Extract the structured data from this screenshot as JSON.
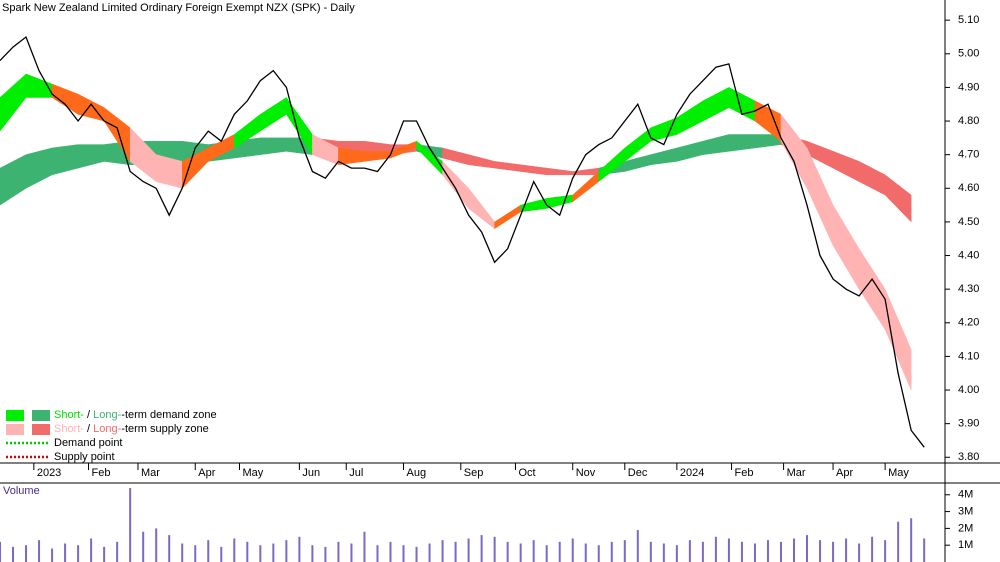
{
  "chart_data": {
    "type": "line",
    "title": "Spark New Zealand Limited Ordinary Foreign Exempt NZX (SPK) - Daily",
    "x": [
      0,
      5,
      10,
      15,
      20,
      25,
      30,
      35,
      40,
      45,
      50,
      55,
      60,
      65,
      70,
      75,
      80,
      85,
      90,
      95,
      100,
      105,
      110,
      115,
      120,
      125,
      130,
      135,
      140,
      145,
      150,
      155,
      160,
      165,
      170,
      175,
      180,
      185,
      190,
      195,
      200,
      205,
      210,
      215,
      220,
      225,
      230,
      235,
      240,
      245,
      250,
      255,
      260,
      265,
      270,
      275,
      280,
      285,
      290,
      295,
      300,
      305,
      310,
      315,
      320,
      325,
      330,
      335,
      340,
      345,
      350,
      355
    ],
    "values": [
      4.98,
      5.02,
      5.05,
      4.95,
      4.88,
      4.85,
      4.8,
      4.85,
      4.8,
      4.78,
      4.65,
      4.62,
      4.6,
      4.52,
      4.6,
      4.72,
      4.77,
      4.74,
      4.82,
      4.86,
      4.92,
      4.95,
      4.9,
      4.75,
      4.65,
      4.63,
      4.68,
      4.66,
      4.66,
      4.65,
      4.7,
      4.8,
      4.8,
      4.72,
      4.66,
      4.6,
      4.52,
      4.47,
      4.38,
      4.42,
      4.52,
      4.62,
      4.55,
      4.52,
      4.63,
      4.7,
      4.73,
      4.75,
      4.8,
      4.85,
      4.75,
      4.73,
      4.82,
      4.88,
      4.92,
      4.96,
      4.97,
      4.82,
      4.83,
      4.85,
      4.75,
      4.68,
      4.55,
      4.4,
      4.33,
      4.3,
      4.28,
      4.33,
      4.27,
      4.05,
      3.88,
      3.83
    ],
    "color": "#000000",
    "xlim": [
      0,
      363
    ],
    "ylim": [
      3.78,
      5.16
    ],
    "xticks": [
      {
        "value": 13,
        "label": "2023"
      },
      {
        "value": 34,
        "label": "Feb"
      },
      {
        "value": 53,
        "label": "Mar"
      },
      {
        "value": 75,
        "label": "Apr"
      },
      {
        "value": 92,
        "label": "May"
      },
      {
        "value": 115,
        "label": "Jun"
      },
      {
        "value": 133,
        "label": "Jul"
      },
      {
        "value": 155,
        "label": "Aug"
      },
      {
        "value": 177,
        "label": "Sep"
      },
      {
        "value": 198,
        "label": "Oct"
      },
      {
        "value": 220,
        "label": "Nov"
      },
      {
        "value": 240,
        "label": "Dec"
      },
      {
        "value": 260,
        "label": "2024"
      },
      {
        "value": 281,
        "label": "Feb"
      },
      {
        "value": 301,
        "label": "Mar"
      },
      {
        "value": 320,
        "label": "Apr"
      },
      {
        "value": 340,
        "label": "May"
      }
    ],
    "yticks": [
      {
        "value": 5.1,
        "label": "5.10"
      },
      {
        "value": 5.0,
        "label": "5.00"
      },
      {
        "value": 4.9,
        "label": "4.90"
      },
      {
        "value": 4.8,
        "label": "4.80"
      },
      {
        "value": 4.7,
        "label": "4.70"
      },
      {
        "value": 4.6,
        "label": "4.60"
      },
      {
        "value": 4.5,
        "label": "4.50"
      },
      {
        "value": 4.4,
        "label": "4.40"
      },
      {
        "value": 4.3,
        "label": "4.30"
      },
      {
        "value": 4.2,
        "label": "4.20"
      },
      {
        "value": 4.1,
        "label": "4.10"
      },
      {
        "value": 4.0,
        "label": "4.00"
      },
      {
        "value": 3.9,
        "label": "3.90"
      },
      {
        "value": 3.8,
        "label": "3.80"
      }
    ],
    "zones": [
      {
        "x": [
          0,
          10,
          20,
          30,
          40,
          50,
          60,
          70,
          80,
          90,
          100,
          110,
          120,
          130,
          140,
          150,
          160,
          170,
          180,
          190,
          200,
          210,
          220,
          230,
          240,
          250,
          260,
          270,
          280,
          290,
          300,
          310,
          320,
          330,
          340,
          350
        ],
        "upper": [
          4.66,
          4.7,
          4.72,
          4.73,
          4.73,
          4.74,
          4.74,
          4.74,
          4.73,
          4.74,
          4.75,
          4.75,
          4.75,
          4.74,
          4.74,
          4.73,
          4.73,
          4.72,
          4.7,
          4.68,
          4.67,
          4.66,
          4.65,
          4.66,
          4.68,
          4.7,
          4.72,
          4.74,
          4.76,
          4.76,
          4.76,
          4.74,
          4.71,
          4.68,
          4.64,
          4.58
        ],
        "lower": [
          4.55,
          4.6,
          4.64,
          4.66,
          4.68,
          4.67,
          4.67,
          4.68,
          4.68,
          4.69,
          4.7,
          4.71,
          4.7,
          4.7,
          4.7,
          4.7,
          4.71,
          4.69,
          4.67,
          4.66,
          4.65,
          4.64,
          4.64,
          4.64,
          4.65,
          4.67,
          4.68,
          4.7,
          4.71,
          4.72,
          4.73,
          4.7,
          4.66,
          4.62,
          4.58,
          4.5
        ],
        "colors": [
          "#3cb371",
          "#3cb371",
          "#3cb371",
          "#3cb371",
          "#3cb371",
          "#3cb371",
          "#3cb371",
          "#3cb371",
          "#3cb371",
          "#3cb371",
          "#3cb371",
          "#3cb371",
          "#f26b6b",
          "#f26b6b",
          "#f26b6b",
          "#f26b6b",
          "#3cb371",
          "#f26b6b",
          "#f26b6b",
          "#f26b6b",
          "#f26b6b",
          "#f26b6b",
          "#f26b6b",
          "#3cb371",
          "#3cb371",
          "#3cb371",
          "#3cb371",
          "#3cb371",
          "#3cb371",
          "#3cb371",
          "#f26b6b",
          "#f26b6b",
          "#f26b6b",
          "#f26b6b",
          "#f26b6b",
          "#f26b6b"
        ]
      },
      {
        "x": [
          0,
          10,
          20,
          30,
          40,
          50,
          60,
          70,
          80,
          90,
          100,
          110,
          120,
          130,
          140,
          150,
          160,
          170,
          180,
          190,
          200,
          210,
          220,
          230,
          240,
          250,
          260,
          270,
          280,
          290,
          300,
          310,
          320,
          330,
          340,
          350
        ],
        "upper": [
          4.87,
          4.94,
          4.91,
          4.88,
          4.84,
          4.78,
          4.7,
          4.68,
          4.72,
          4.76,
          4.82,
          4.87,
          4.76,
          4.72,
          4.71,
          4.71,
          4.74,
          4.68,
          4.6,
          4.5,
          4.55,
          4.57,
          4.58,
          4.65,
          4.72,
          4.78,
          4.81,
          4.86,
          4.9,
          4.86,
          4.82,
          4.72,
          4.55,
          4.42,
          4.3,
          4.12
        ],
        "lower": [
          4.77,
          4.87,
          4.87,
          4.82,
          4.8,
          4.68,
          4.62,
          4.6,
          4.68,
          4.72,
          4.77,
          4.82,
          4.7,
          4.67,
          4.68,
          4.69,
          4.72,
          4.64,
          4.54,
          4.48,
          4.53,
          4.54,
          4.56,
          4.62,
          4.68,
          4.74,
          4.76,
          4.8,
          4.84,
          4.8,
          4.74,
          4.6,
          4.43,
          4.3,
          4.18,
          4.0
        ],
        "colors": [
          "#00ee00",
          "#00ee00",
          "#ff6a1a",
          "#ff6a1a",
          "#ff6a1a",
          "#ffb3b3",
          "#ffb3b3",
          "#ff6a1a",
          "#ff6a1a",
          "#00ee00",
          "#00ee00",
          "#00ee00",
          "#ffb3b3",
          "#ff6a1a",
          "#ff6a1a",
          "#ff6a1a",
          "#00ee00",
          "#ffb3b3",
          "#ffb3b3",
          "#ff6a1a",
          "#00ee00",
          "#00ee00",
          "#ff6a1a",
          "#00ee00",
          "#00ee00",
          "#00ee00",
          "#00ee00",
          "#00ee00",
          "#00ee00",
          "#ff6a1a",
          "#ffb3b3",
          "#ffb3b3",
          "#ffb3b3",
          "#ffb3b3",
          "#ffb3b3",
          "#ffb3b3"
        ]
      }
    ],
    "legend": [
      {
        "swatches": [
          "#00ee00",
          "#3cb371"
        ],
        "parts": [
          {
            "text": "Short-",
            "color": "#00dd00"
          },
          {
            "text": " / "
          },
          {
            "text": "Long-",
            "color": "#3cb371"
          },
          {
            "text": "-term demand zone"
          }
        ]
      },
      {
        "swatches": [
          "#ffb3b3",
          "#f26b6b"
        ],
        "parts": [
          {
            "text": "Short-",
            "color": "#ffb3b3"
          },
          {
            "text": " / "
          },
          {
            "text": "Long-",
            "color": "#f26b6b"
          },
          {
            "text": "-term supply zone"
          }
        ]
      },
      {
        "line": "#00cc00",
        "parts": [
          {
            "text": "Demand point"
          }
        ]
      },
      {
        "line": "#dd0000",
        "parts": [
          {
            "text": "Supply point"
          }
        ]
      }
    ],
    "volume": {
      "label": "Volume",
      "color": "#7b68c8",
      "values": [
        1200000,
        900000,
        1000000,
        1300000,
        800000,
        1100000,
        1000000,
        1400000,
        900000,
        1200000,
        4400000,
        1800000,
        2000000,
        1600000,
        1100000,
        1000000,
        1300000,
        900000,
        1400000,
        1200000,
        1000000,
        1100000,
        1300000,
        1500000,
        1000000,
        900000,
        1200000,
        1100000,
        1800000,
        1000000,
        1200000,
        1000000,
        900000,
        1100000,
        1300000,
        1200000,
        1400000,
        1600000,
        1500000,
        1200000,
        1100000,
        1300000,
        1000000,
        1200000,
        1400000,
        1100000,
        1000000,
        1200000,
        1300000,
        1900000,
        1200000,
        1100000,
        1000000,
        1300000,
        1200000,
        1500000,
        1400000,
        1200000,
        1100000,
        1300000,
        1200000,
        1400000,
        1600000,
        1300000,
        1200000,
        1400000,
        1100000,
        1500000,
        1300000,
        2400000,
        2600000,
        1400000
      ],
      "ylim": [
        0,
        4700000
      ],
      "yticks": [
        {
          "value": 4000000,
          "label": "4M"
        },
        {
          "value": 3000000,
          "label": "3M"
        },
        {
          "value": 2000000,
          "label": "2M"
        },
        {
          "value": 1000000,
          "label": "1M"
        }
      ]
    }
  }
}
